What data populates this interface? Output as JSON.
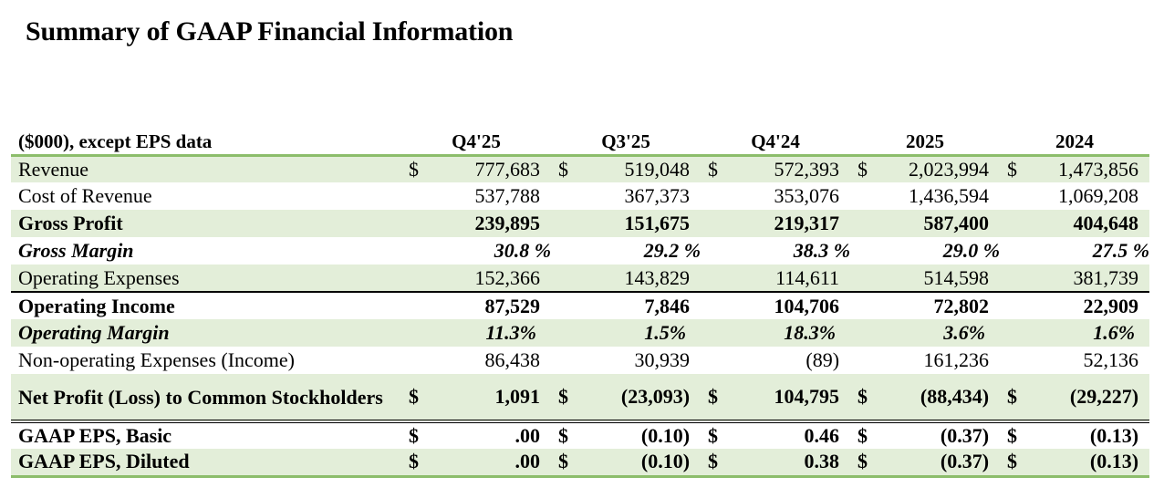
{
  "title": "Summary of GAAP Financial Information",
  "header": {
    "label": "($000), except EPS data",
    "periods": [
      "Q4'25",
      "Q3'25",
      "Q4'24",
      "2025",
      "2024"
    ]
  },
  "rows": {
    "revenue": {
      "label": "Revenue",
      "currency": "$",
      "values": [
        "777,683",
        "519,048",
        "572,393",
        "2,023,994",
        "1,473,856"
      ]
    },
    "cost_of_revenue": {
      "label": "Cost of Revenue",
      "values": [
        "537,788",
        "367,373",
        "353,076",
        "1,436,594",
        "1,069,208"
      ]
    },
    "gross_profit": {
      "label": "Gross Profit",
      "values": [
        "239,895",
        "151,675",
        "219,317",
        "587,400",
        "404,648"
      ]
    },
    "gross_margin": {
      "label": "Gross Margin",
      "values": [
        "30.8 %",
        "29.2 %",
        "38.3 %",
        "29.0 %",
        "27.5 %"
      ]
    },
    "operating_expenses": {
      "label": "Operating Expenses",
      "values": [
        "152,366",
        "143,829",
        "114,611",
        "514,598",
        "381,739"
      ]
    },
    "operating_income": {
      "label": "Operating Income",
      "values": [
        "87,529",
        "7,846",
        "104,706",
        "72,802",
        "22,909"
      ]
    },
    "operating_margin": {
      "label": "Operating Margin",
      "values": [
        "11.3%",
        "1.5%",
        "18.3%",
        "3.6%",
        "1.6%"
      ]
    },
    "non_operating": {
      "label": "Non-operating Expenses (Income)",
      "values": [
        "86,438",
        "30,939",
        "(89)",
        "161,236",
        "52,136"
      ]
    },
    "net_profit": {
      "label": "Net Profit (Loss) to Common Stockholders",
      "currency": "$",
      "values": [
        "1,091",
        "(23,093)",
        "104,795",
        "(88,434)",
        "(29,227)"
      ]
    },
    "eps_basic": {
      "label": "GAAP EPS, Basic",
      "currency": "$",
      "values": [
        ".00",
        "(0.10)",
        "0.46",
        "(0.37)",
        "(0.13)"
      ]
    },
    "eps_diluted": {
      "label": "GAAP EPS, Diluted",
      "currency": "$",
      "values": [
        ".00",
        "(0.10)",
        "0.38",
        "(0.37)",
        "(0.13)"
      ]
    }
  },
  "colors": {
    "accent_green": "#8cbd6b",
    "row_shade": "#e3eed9"
  }
}
